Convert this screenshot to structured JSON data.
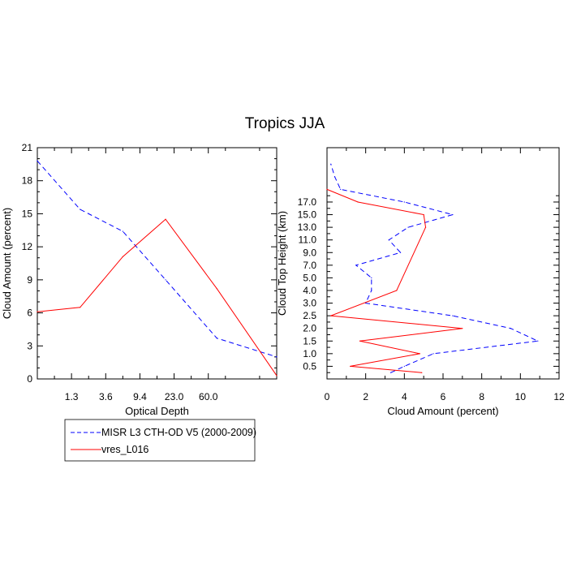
{
  "figure": {
    "title": "Tropics JJA"
  },
  "legend": {
    "placement": "below-left",
    "entries": [
      {
        "label": "MISR L3 CTH-OD V5 (2000-2009)",
        "color": "#0000ff",
        "dash": true
      },
      {
        "label": "vres_L016",
        "color": "#ff0000",
        "dash": false
      }
    ]
  },
  "chart_data": [
    {
      "type": "line",
      "xlabel": "Optical Depth",
      "ylabel": "Cloud Amount (percent)",
      "x_tick_labels": [
        "1.3",
        "3.6",
        "9.4",
        "23.0",
        "60.0"
      ],
      "y_ticks": [
        0,
        3,
        6,
        9,
        12,
        15,
        18,
        21
      ],
      "ylim": [
        0,
        21
      ],
      "x_bins": 7,
      "series": [
        {
          "name": "MISR L3 CTH-OD V5 (2000-2009)",
          "color": "#0000ff",
          "dash": true,
          "values": [
            19.8,
            15.4,
            13.4,
            9.0,
            3.7,
            2.0
          ]
        },
        {
          "name": "vres_L016",
          "color": "#ff0000",
          "dash": false,
          "values": [
            6.1,
            6.5,
            11.1,
            14.5,
            8.2,
            0.3
          ]
        }
      ],
      "x_positions": [
        0.0,
        1.25,
        2.5,
        3.75,
        5.25,
        7.0
      ]
    },
    {
      "type": "line",
      "xlabel": "Cloud Amount (percent)",
      "ylabel": "Cloud Top Height (km)",
      "xlim": [
        0,
        12
      ],
      "x_ticks": [
        0,
        2,
        4,
        6,
        8,
        10,
        12
      ],
      "y_tick_labels": [
        "0.5",
        "1.0",
        "1.5",
        "2.0",
        "2.5",
        "3.0",
        "4.0",
        "5.0",
        "7.0",
        "9.0",
        "11.0",
        "13.0",
        "15.0",
        "17.0"
      ],
      "series": [
        {
          "name": "MISR L3 CTH-OD V5 (2000-2009)",
          "color": "#0000ff",
          "dash": true,
          "points": [
            [
              3.3,
              -0.5
            ],
            [
              4.0,
              0.0
            ],
            [
              5.5,
              1.0
            ],
            [
              10.9,
              2.0
            ],
            [
              9.5,
              3.0
            ],
            [
              6.5,
              4.0
            ],
            [
              2.0,
              5.0
            ],
            [
              2.3,
              6.0
            ],
            [
              2.3,
              7.0
            ],
            [
              1.5,
              8.0
            ],
            [
              3.8,
              9.0
            ],
            [
              3.2,
              10.0
            ],
            [
              4.2,
              11.0
            ],
            [
              6.5,
              12.0
            ],
            [
              4.0,
              13.0
            ],
            [
              0.7,
              14.0
            ],
            [
              0.4,
              15.0
            ],
            [
              0.2,
              16.0
            ]
          ]
        },
        {
          "name": "vres_L016",
          "color": "#ff0000",
          "dash": false,
          "points": [
            [
              4.9,
              -0.5
            ],
            [
              1.2,
              0.0
            ],
            [
              4.8,
              1.0
            ],
            [
              1.7,
              2.0
            ],
            [
              7.0,
              3.0
            ],
            [
              0.2,
              4.0
            ],
            [
              3.6,
              6.0
            ],
            [
              5.1,
              11.0
            ],
            [
              5.0,
              12.0
            ],
            [
              1.6,
              13.0
            ],
            [
              0.0,
              14.0
            ]
          ]
        }
      ]
    }
  ]
}
